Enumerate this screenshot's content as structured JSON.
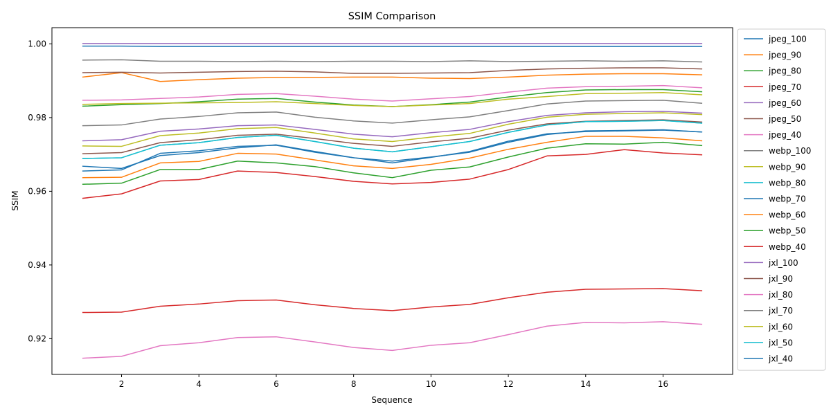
{
  "chart_data": {
    "type": "line",
    "title": "SSIM Comparison",
    "xlabel": "Sequence",
    "ylabel": "SSIM",
    "xlim": [
      0.2,
      17.8
    ],
    "ylim": [
      0.9103,
      1.0044
    ],
    "x_ticks": [
      2,
      4,
      6,
      8,
      10,
      12,
      14,
      16
    ],
    "y_ticks": [
      0.92,
      0.94,
      0.96,
      0.98,
      1.0
    ],
    "y_tick_labels": [
      "0.92",
      "0.94",
      "0.96",
      "0.98",
      "1.00"
    ],
    "grid": false,
    "legend_position": "outside-right-top",
    "x": [
      1,
      2,
      3,
      4,
      5,
      6,
      7,
      8,
      9,
      10,
      11,
      12,
      13,
      14,
      15,
      16,
      17
    ],
    "series": [
      {
        "name": "jpeg_100",
        "color": "#1f77b4",
        "values": [
          0.9994,
          0.9994,
          0.9993,
          0.9993,
          0.9993,
          0.9993,
          0.9993,
          0.9993,
          0.9993,
          0.9993,
          0.9993,
          0.9993,
          0.9993,
          0.9993,
          0.9993,
          0.9993,
          0.9993
        ]
      },
      {
        "name": "jpeg_90",
        "color": "#ff7f0e",
        "values": [
          0.991,
          0.9922,
          0.9898,
          0.9903,
          0.9907,
          0.9909,
          0.9909,
          0.991,
          0.991,
          0.9907,
          0.9906,
          0.991,
          0.9915,
          0.9918,
          0.9919,
          0.9919,
          0.9916
        ]
      },
      {
        "name": "jpeg_80",
        "color": "#2ca02c",
        "values": [
          0.9831,
          0.9835,
          0.9838,
          0.9843,
          0.985,
          0.9852,
          0.9842,
          0.9834,
          0.983,
          0.9835,
          0.9842,
          0.9856,
          0.9868,
          0.9875,
          0.9876,
          0.9876,
          0.987
        ]
      },
      {
        "name": "jpeg_70",
        "color": "#d62728",
        "values": [
          0.9581,
          0.9593,
          0.9628,
          0.9632,
          0.9655,
          0.9651,
          0.964,
          0.9627,
          0.962,
          0.9624,
          0.9633,
          0.9659,
          0.9696,
          0.97,
          0.9713,
          0.9704,
          0.9699
        ]
      },
      {
        "name": "jpeg_60",
        "color": "#9467bd",
        "values": [
          0.9737,
          0.974,
          0.9763,
          0.9769,
          0.9778,
          0.978,
          0.9768,
          0.9755,
          0.9748,
          0.9759,
          0.9768,
          0.9789,
          0.9806,
          0.9813,
          0.9816,
          0.9817,
          0.9812
        ]
      },
      {
        "name": "jpeg_50",
        "color": "#8c564b",
        "values": [
          0.9922,
          0.9923,
          0.9921,
          0.9923,
          0.9925,
          0.9926,
          0.9924,
          0.992,
          0.992,
          0.9921,
          0.9922,
          0.9928,
          0.9932,
          0.9934,
          0.9935,
          0.9935,
          0.9932
        ]
      },
      {
        "name": "jpeg_40",
        "color": "#e377c2",
        "values": [
          0.9847,
          0.9848,
          0.9852,
          0.9856,
          0.9863,
          0.9865,
          0.9858,
          0.985,
          0.9845,
          0.9851,
          0.9857,
          0.9869,
          0.988,
          0.9884,
          0.9885,
          0.9887,
          0.9881
        ]
      },
      {
        "name": "webp_100",
        "color": "#7f7f7f",
        "values": [
          0.9956,
          0.9957,
          0.9953,
          0.9953,
          0.9952,
          0.9953,
          0.9952,
          0.9953,
          0.9953,
          0.9952,
          0.9954,
          0.9952,
          0.9953,
          0.9954,
          0.9953,
          0.9954,
          0.9951
        ]
      },
      {
        "name": "webp_90",
        "color": "#bcbd22",
        "values": [
          0.9836,
          0.9838,
          0.9839,
          0.984,
          0.9841,
          0.9843,
          0.9838,
          0.9833,
          0.983,
          0.9834,
          0.9838,
          0.985,
          0.9857,
          0.9865,
          0.9866,
          0.9868,
          0.9862
        ]
      },
      {
        "name": "webp_80",
        "color": "#17becf",
        "values": [
          0.9689,
          0.9691,
          0.9725,
          0.9732,
          0.9746,
          0.9752,
          0.9735,
          0.9717,
          0.9707,
          0.9721,
          0.9735,
          0.976,
          0.978,
          0.9789,
          0.979,
          0.9792,
          0.9785
        ]
      },
      {
        "name": "webp_70",
        "color": "#1f77b4",
        "values": [
          0.9668,
          0.9662,
          0.9697,
          0.9705,
          0.9718,
          0.9726,
          0.9708,
          0.9691,
          0.9682,
          0.9693,
          0.9706,
          0.9733,
          0.9754,
          0.9764,
          0.9765,
          0.9767,
          0.9761
        ]
      },
      {
        "name": "webp_60",
        "color": "#ff7f0e",
        "values": [
          0.9637,
          0.9638,
          0.9677,
          0.9681,
          0.9703,
          0.9701,
          0.9685,
          0.9669,
          0.9662,
          0.9673,
          0.969,
          0.9714,
          0.9733,
          0.9749,
          0.9749,
          0.9745,
          0.9737
        ]
      },
      {
        "name": "webp_50",
        "color": "#2ca02c",
        "values": [
          0.9619,
          0.9622,
          0.9659,
          0.9659,
          0.9682,
          0.9677,
          0.9667,
          0.965,
          0.9637,
          0.9657,
          0.9666,
          0.9693,
          0.9717,
          0.9729,
          0.9728,
          0.9733,
          0.9724
        ]
      },
      {
        "name": "webp_40",
        "color": "#d62728",
        "values": [
          0.9271,
          0.9272,
          0.9288,
          0.9294,
          0.9303,
          0.9305,
          0.9292,
          0.9282,
          0.9276,
          0.9286,
          0.9293,
          0.9311,
          0.9326,
          0.9334,
          0.9335,
          0.9336,
          0.933
        ]
      },
      {
        "name": "jxl_100",
        "color": "#9467bd",
        "values": [
          1.0001,
          1.0001,
          1.0001,
          1.0001,
          1.0001,
          1.0001,
          1.0001,
          1.0001,
          1.0001,
          1.0001,
          1.0001,
          1.0001,
          1.0001,
          1.0001,
          1.0001,
          1.0001,
          1.0001
        ]
      },
      {
        "name": "jxl_90",
        "color": "#8c564b",
        "values": [
          0.9702,
          0.9705,
          0.9732,
          0.974,
          0.9752,
          0.9755,
          0.9743,
          0.973,
          0.9722,
          0.9734,
          0.9744,
          0.9766,
          0.9783,
          0.979,
          0.9792,
          0.9794,
          0.9788
        ]
      },
      {
        "name": "jxl_80",
        "color": "#e377c2",
        "values": [
          0.9147,
          0.9152,
          0.9181,
          0.9189,
          0.9203,
          0.9205,
          0.9191,
          0.9176,
          0.9168,
          0.9182,
          0.9189,
          0.9211,
          0.9234,
          0.9244,
          0.9243,
          0.9246,
          0.9239
        ]
      },
      {
        "name": "jxl_70",
        "color": "#7f7f7f",
        "values": [
          0.9778,
          0.978,
          0.9796,
          0.9803,
          0.9813,
          0.9815,
          0.9801,
          0.9791,
          0.9785,
          0.9794,
          0.9802,
          0.9819,
          0.9837,
          0.9845,
          0.9846,
          0.9847,
          0.9839
        ]
      },
      {
        "name": "jxl_60",
        "color": "#bcbd22",
        "values": [
          0.9723,
          0.9722,
          0.9751,
          0.9758,
          0.977,
          0.9773,
          0.9758,
          0.9742,
          0.9735,
          0.9747,
          0.9757,
          0.9782,
          0.9801,
          0.9809,
          0.9811,
          0.9813,
          0.9808
        ]
      },
      {
        "name": "jxl_50",
        "color": "#17becf",
        "values": [
          0.9689,
          0.9691,
          0.9725,
          0.9732,
          0.9746,
          0.9752,
          0.9735,
          0.9717,
          0.9707,
          0.9721,
          0.9735,
          0.976,
          0.978,
          0.9789,
          0.979,
          0.9792,
          0.9785
        ]
      },
      {
        "name": "jxl_40",
        "color": "#1f77b4",
        "values": [
          0.9655,
          0.9658,
          0.9703,
          0.971,
          0.9722,
          0.9725,
          0.9706,
          0.9691,
          0.9677,
          0.9692,
          0.9708,
          0.9736,
          0.9756,
          0.9762,
          0.9764,
          0.9766,
          0.9761
        ]
      }
    ]
  }
}
